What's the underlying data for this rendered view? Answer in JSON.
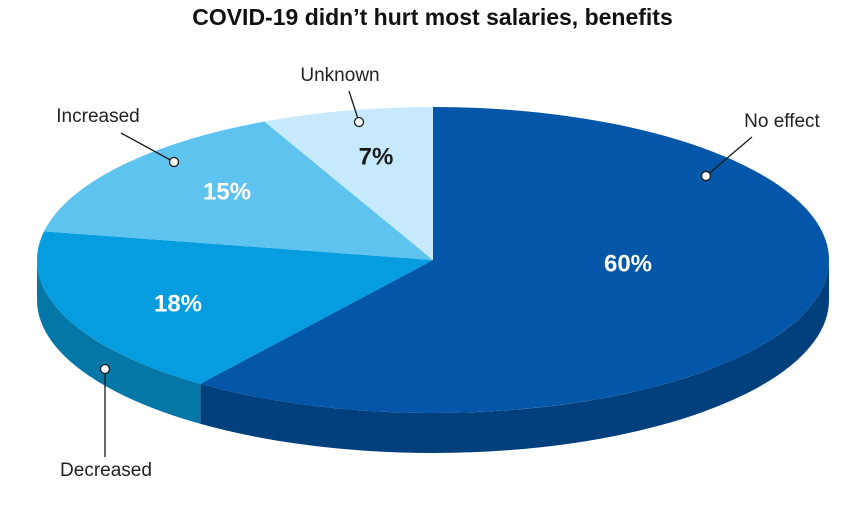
{
  "chart_data": {
    "type": "pie",
    "title": "COVID-19 didn’t hurt most salaries, benefits",
    "slices": [
      {
        "label": "No effect",
        "value": 60,
        "value_label": "60%",
        "color": "#0457a8",
        "side_color": "#023f7d",
        "text_color": "#ffffff"
      },
      {
        "label": "Decreased",
        "value": 18,
        "value_label": "18%",
        "color": "#059de0",
        "side_color": "#0577a6",
        "text_color": "#ffffff"
      },
      {
        "label": "Increased",
        "value": 15,
        "value_label": "15%",
        "color": "#5ec4ef",
        "side_color": "#3aa6d4",
        "text_color": "#ffffff"
      },
      {
        "label": "Unknown",
        "value": 7,
        "value_label": "7%",
        "color": "#c6eafc",
        "side_color": "#9fd3ee",
        "text_color": "#1a1a1a"
      }
    ]
  }
}
